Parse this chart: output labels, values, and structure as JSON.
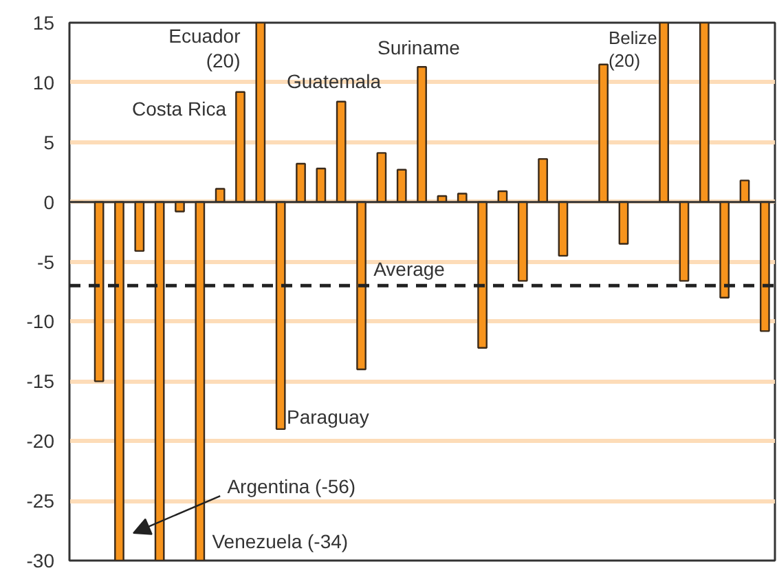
{
  "chart_data": {
    "type": "bar",
    "categories": [
      null,
      null,
      null,
      null,
      null,
      null,
      null,
      null,
      null,
      null,
      null,
      null,
      null,
      null,
      null,
      null,
      null,
      null,
      null,
      null,
      null,
      null,
      null,
      null,
      null,
      null,
      null,
      null,
      null,
      null,
      null,
      null,
      null,
      null,
      null
    ],
    "series": [
      {
        "color": "#f7941d",
        "values": [
          0,
          -15,
          -30,
          -4.1,
          -30,
          -0.8,
          -30,
          1.1,
          9.2,
          15,
          -19,
          3.2,
          2.8,
          8.4,
          -14,
          4.1,
          2.7,
          11.3,
          0.5,
          0.7,
          -12.2,
          0.9,
          -6.6,
          3.6,
          -4.5,
          null,
          11.5,
          -3.5,
          null,
          15,
          -6.6,
          15,
          -8,
          1.8,
          -10.8
        ]
      }
    ],
    "ylim": [
      -30,
      15
    ],
    "yticks": [
      -30,
      -25,
      -20,
      -15,
      -10,
      -5,
      0,
      5,
      10,
      15
    ],
    "grid": "y",
    "tick_labels": "y",
    "ref_lines": [
      {
        "axis": "y",
        "value": -7,
        "label": "Average",
        "color": "#222222",
        "line_style": "dashed"
      }
    ],
    "annotations": [
      "Ecuador\n(20)",
      "Costa Rica",
      "Guatemala",
      "Suriname",
      "Belize\n(20)",
      "Paraguay",
      "Argentina (-56)",
      "Venezuela (-34)"
    ]
  }
}
